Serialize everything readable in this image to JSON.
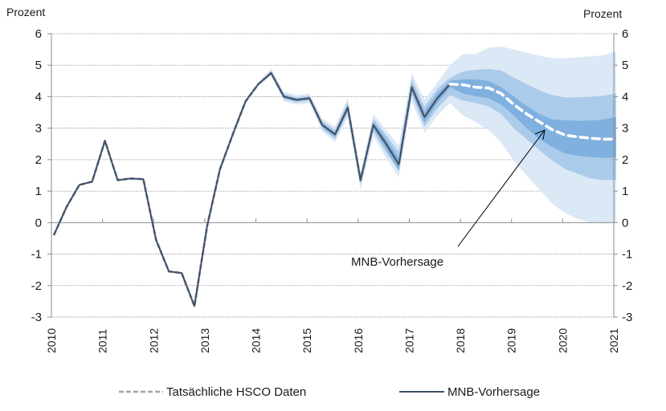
{
  "chart_data": {
    "type": "line",
    "title": "",
    "ylabel_left": "Prozent",
    "ylabel_right": "Prozent",
    "ylim": [
      -3,
      6
    ],
    "yticks": [
      -3,
      -2,
      -1,
      0,
      1,
      2,
      3,
      4,
      5,
      6
    ],
    "ytick_labels": [
      "-3",
      "-2",
      "-1",
      "0",
      "1",
      "2",
      "3",
      "4",
      "5",
      "6"
    ],
    "xlim": [
      2010,
      2021
    ],
    "xtick_labels": [
      "2010",
      "2011",
      "2012",
      "2013",
      "2014",
      "2015",
      "2016",
      "2017",
      "2018",
      "2019",
      "2020",
      "2021"
    ],
    "grid": true,
    "legend_position": "bottom",
    "annotation": {
      "text": "MNB-Vorhersage",
      "points_to": {
        "x": 2019.75,
        "y": 2.95
      }
    },
    "series": [
      {
        "name": "Tatsächliche HSCO Daten",
        "style": "dashed",
        "color": "#a6a6a6",
        "x": [
          2010.0,
          2010.25,
          2010.5,
          2010.75,
          2011.0,
          2011.25,
          2011.5,
          2011.75,
          2012.0,
          2012.25,
          2012.5,
          2012.75,
          2013.0,
          2013.25,
          2013.5,
          2013.75,
          2014.0,
          2014.25,
          2014.5,
          2014.75,
          2015.0,
          2015.25,
          2015.5,
          2015.75,
          2016.0,
          2016.25,
          2016.5,
          2016.75,
          2017.0,
          2017.25,
          2017.5,
          2017.75
        ],
        "values": [
          -0.4,
          0.5,
          1.2,
          1.3,
          2.6,
          1.35,
          1.4,
          1.38,
          -0.55,
          -1.55,
          -1.6,
          -2.65,
          -0.1,
          1.7,
          2.8,
          3.85,
          4.4,
          4.75,
          4.0,
          3.9,
          3.95,
          3.1,
          2.8,
          3.65,
          1.35,
          3.1,
          2.5,
          1.85,
          4.3,
          3.35,
          3.95,
          4.4
        ]
      },
      {
        "name": "MNB-Vorhersage",
        "style": "solid",
        "color": "#3d4f6a",
        "x": [
          2010.0,
          2010.25,
          2010.5,
          2010.75,
          2011.0,
          2011.25,
          2011.5,
          2011.75,
          2012.0,
          2012.25,
          2012.5,
          2012.75,
          2013.0,
          2013.25,
          2013.5,
          2013.75,
          2014.0,
          2014.25,
          2014.5,
          2014.75,
          2015.0,
          2015.25,
          2015.5,
          2015.75,
          2016.0,
          2016.25,
          2016.5,
          2016.75,
          2017.0,
          2017.25,
          2017.5,
          2017.75
        ],
        "values": [
          -0.4,
          0.5,
          1.2,
          1.3,
          2.6,
          1.35,
          1.4,
          1.38,
          -0.55,
          -1.55,
          -1.6,
          -2.65,
          -0.1,
          1.7,
          2.8,
          3.85,
          4.4,
          4.75,
          4.0,
          3.9,
          3.95,
          3.1,
          2.8,
          3.65,
          1.35,
          3.1,
          2.5,
          1.85,
          4.3,
          3.35,
          3.95,
          4.4
        ]
      },
      {
        "name": "MNB-Vorhersage (Prognose)",
        "style": "dashed-white",
        "color": "#ffffff",
        "x": [
          2017.75,
          2018.0,
          2018.25,
          2018.5,
          2018.75,
          2019.0,
          2019.25,
          2019.5,
          2019.75,
          2020.0,
          2020.25,
          2020.5,
          2020.75,
          2021.0
        ],
        "values": [
          4.4,
          4.38,
          4.3,
          4.28,
          4.1,
          3.75,
          3.45,
          3.2,
          2.95,
          2.78,
          2.72,
          2.68,
          2.65,
          2.65
        ]
      }
    ],
    "fan_bands": {
      "colors": [
        "#dbe8f6",
        "#abcbea",
        "#7fb0df"
      ],
      "x": [
        2013.75,
        2014.0,
        2014.25,
        2014.5,
        2014.75,
        2015.0,
        2015.25,
        2015.5,
        2015.75,
        2016.0,
        2016.25,
        2016.5,
        2016.75,
        2017.0,
        2017.25,
        2017.5,
        2017.75,
        2018.0,
        2018.25,
        2018.5,
        2018.75,
        2019.0,
        2019.25,
        2019.5,
        2019.75,
        2020.0,
        2020.25,
        2020.5,
        2020.75,
        2021.0
      ],
      "outer_upper": [
        3.85,
        4.45,
        4.9,
        4.15,
        4.05,
        4.1,
        3.3,
        3.05,
        3.95,
        1.6,
        3.45,
        2.95,
        2.45,
        4.75,
        3.9,
        4.45,
        5.0,
        5.35,
        5.35,
        5.55,
        5.6,
        5.5,
        5.4,
        5.3,
        5.22,
        5.22,
        5.25,
        5.28,
        5.32,
        5.45
      ],
      "outer_lower": [
        3.85,
        4.35,
        4.65,
        3.85,
        3.75,
        3.8,
        2.9,
        2.55,
        3.35,
        1.05,
        2.75,
        2.05,
        1.45,
        3.85,
        2.85,
        3.4,
        3.8,
        3.4,
        3.2,
        2.95,
        2.55,
        1.95,
        1.5,
        1.05,
        0.6,
        0.3,
        0.12,
        0.0,
        -0.02,
        0.0
      ],
      "mid_upper": [
        3.85,
        4.42,
        4.82,
        4.08,
        3.98,
        4.03,
        3.22,
        2.95,
        3.83,
        1.48,
        3.3,
        2.78,
        2.25,
        4.55,
        3.68,
        4.25,
        4.6,
        4.8,
        4.85,
        4.88,
        4.83,
        4.6,
        4.4,
        4.2,
        4.05,
        3.98,
        3.98,
        4.0,
        4.03,
        4.1
      ],
      "mid_lower": [
        3.85,
        4.38,
        4.7,
        3.92,
        3.82,
        3.87,
        2.98,
        2.65,
        3.47,
        1.2,
        2.9,
        2.23,
        1.65,
        4.05,
        3.05,
        3.63,
        4.05,
        3.88,
        3.8,
        3.7,
        3.45,
        3.0,
        2.65,
        2.3,
        1.98,
        1.7,
        1.55,
        1.4,
        1.35,
        1.35
      ],
      "inner_upper": [
        3.85,
        4.4,
        4.78,
        4.04,
        3.94,
        3.99,
        3.15,
        2.88,
        3.74,
        1.42,
        3.2,
        2.65,
        2.05,
        4.42,
        3.52,
        4.1,
        4.5,
        4.55,
        4.55,
        4.5,
        4.3,
        4.0,
        3.7,
        3.45,
        3.28,
        3.25,
        3.23,
        3.24,
        3.28,
        3.35
      ],
      "inner_lower": [
        3.85,
        4.4,
        4.72,
        3.96,
        3.86,
        3.91,
        3.05,
        2.72,
        3.56,
        1.28,
        3.0,
        2.35,
        1.65,
        4.18,
        3.18,
        3.8,
        4.3,
        4.1,
        4.02,
        3.95,
        3.75,
        3.4,
        3.0,
        2.65,
        2.4,
        2.2,
        2.12,
        2.08,
        2.05,
        2.08
      ]
    }
  },
  "legend": {
    "items": [
      {
        "label": "Tatsächliche HSCO Daten",
        "style": "dashed",
        "color": "#a6a6a6"
      },
      {
        "label": "MNB-Vorhersage",
        "style": "solid",
        "color": "#3d4f6a"
      }
    ]
  },
  "colors": {
    "axis": "#8c8c8c",
    "grid": "#a6a6a6",
    "line": "#3d4f6a",
    "arrow": "#000000"
  }
}
